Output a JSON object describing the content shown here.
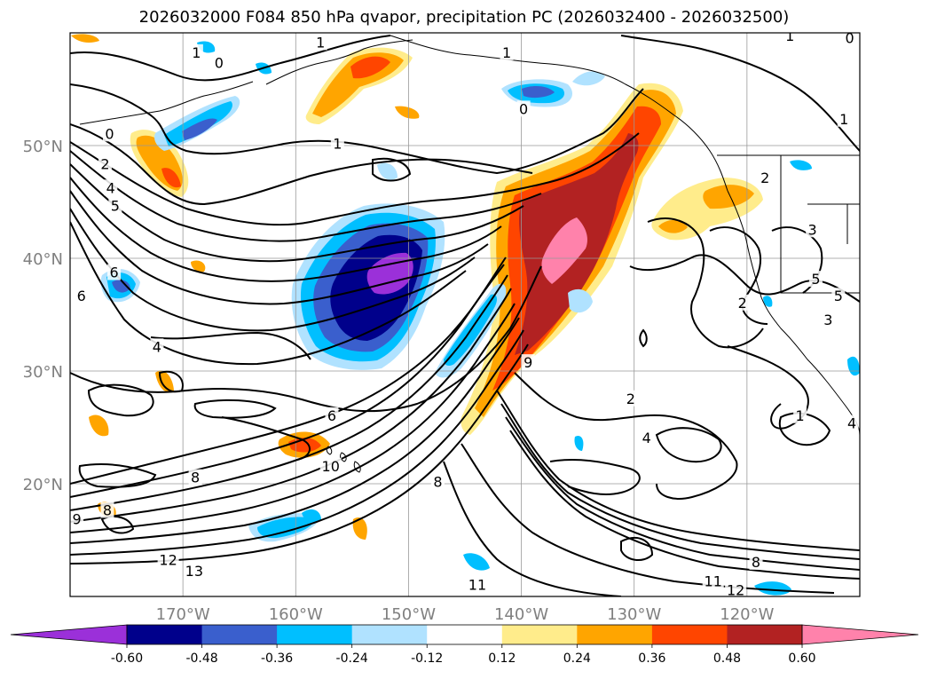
{
  "chart_data": {
    "type": "map-contour",
    "title": "2026032000 F084 850 hPa qvapor, precipitation PC (2026032400 - 2026032500)",
    "lon_range": [
      -180,
      -110
    ],
    "lat_range": [
      10,
      60
    ],
    "lon_ticks": [
      {
        "lon": -170,
        "label": "170°W"
      },
      {
        "lon": -160,
        "label": "160°W"
      },
      {
        "lon": -150,
        "label": "150°W"
      },
      {
        "lon": -140,
        "label": "140°W"
      },
      {
        "lon": -130,
        "label": "130°W"
      },
      {
        "lon": -120,
        "label": "120°W"
      }
    ],
    "lat_ticks": [
      {
        "lat": 20,
        "label": "20°N"
      },
      {
        "lat": 30,
        "label": "30°N"
      },
      {
        "lat": 40,
        "label": "40°N"
      },
      {
        "lat": 50,
        "label": "50°N"
      }
    ],
    "grid": true,
    "colorbar": {
      "orientation": "horizontal",
      "extend": "both",
      "levels": [
        "-0.60",
        "-0.48",
        "-0.36",
        "-0.24",
        "-0.12",
        "0.12",
        "0.24",
        "0.36",
        "0.48",
        "0.60"
      ],
      "colors": [
        "#9b30d9",
        "#00008b",
        "#3a5fcd",
        "#00bfff",
        "#b0e2ff",
        "#ffffff",
        "#ffec8b",
        "#ffa500",
        "#ff4500",
        "#b22222",
        "#ff82ab"
      ]
    },
    "contour_labels": [
      {
        "text": "1",
        "lon": -168.8,
        "lat": 58.2
      },
      {
        "text": "0",
        "lon": -166.8,
        "lat": 57.3
      },
      {
        "text": "1",
        "lon": -141.3,
        "lat": 58.2
      },
      {
        "text": "0",
        "lon": -139.8,
        "lat": 53.2
      },
      {
        "text": "1",
        "lon": -157.8,
        "lat": 59.1
      },
      {
        "text": "1",
        "lon": -116.2,
        "lat": 59.7
      },
      {
        "text": "0",
        "lon": -110.9,
        "lat": 59.5
      },
      {
        "text": "1",
        "lon": -111.4,
        "lat": 52.3
      },
      {
        "text": "0",
        "lon": -176.5,
        "lat": 51.0
      },
      {
        "text": "1",
        "lon": -156.3,
        "lat": 50.1
      },
      {
        "text": "2",
        "lon": -176.9,
        "lat": 48.3
      },
      {
        "text": "4",
        "lon": -176.4,
        "lat": 46.2
      },
      {
        "text": "5",
        "lon": -176.0,
        "lat": 44.6
      },
      {
        "text": "6",
        "lon": -176.1,
        "lat": 38.7
      },
      {
        "text": "6",
        "lon": -179.0,
        "lat": 36.6
      },
      {
        "text": "4",
        "lon": -172.3,
        "lat": 32.1
      },
      {
        "text": "2",
        "lon": -118.4,
        "lat": 47.1
      },
      {
        "text": "3",
        "lon": -114.2,
        "lat": 42.5
      },
      {
        "text": "2",
        "lon": -120.4,
        "lat": 36.0
      },
      {
        "text": "5",
        "lon": -113.9,
        "lat": 38.1
      },
      {
        "text": "5",
        "lon": -111.9,
        "lat": 36.6
      },
      {
        "text": "3",
        "lon": -112.8,
        "lat": 34.5
      },
      {
        "text": "2",
        "lon": -130.3,
        "lat": 27.5
      },
      {
        "text": "4",
        "lon": -128.9,
        "lat": 24.0
      },
      {
        "text": "1",
        "lon": -115.3,
        "lat": 26.0
      },
      {
        "text": "4",
        "lon": -110.7,
        "lat": 25.3
      },
      {
        "text": "6",
        "lon": -156.8,
        "lat": 26.0
      },
      {
        "text": "10",
        "lon": -156.9,
        "lat": 21.5
      },
      {
        "text": "8",
        "lon": -147.4,
        "lat": 20.1
      },
      {
        "text": "9",
        "lon": -139.4,
        "lat": 30.7
      },
      {
        "text": "8",
        "lon": -168.9,
        "lat": 20.5
      },
      {
        "text": "8",
        "lon": -176.7,
        "lat": 17.6
      },
      {
        "text": "9",
        "lon": -179.4,
        "lat": 16.8
      },
      {
        "text": "12",
        "lon": -171.3,
        "lat": 13.2
      },
      {
        "text": "13",
        "lon": -169.0,
        "lat": 12.2
      },
      {
        "text": "11",
        "lon": -143.9,
        "lat": 11.0
      },
      {
        "text": "11",
        "lon": -123.0,
        "lat": 11.3
      },
      {
        "text": "12",
        "lon": -121.0,
        "lat": 10.5
      },
      {
        "text": "8",
        "lon": -119.2,
        "lat": 13.0
      }
    ]
  }
}
